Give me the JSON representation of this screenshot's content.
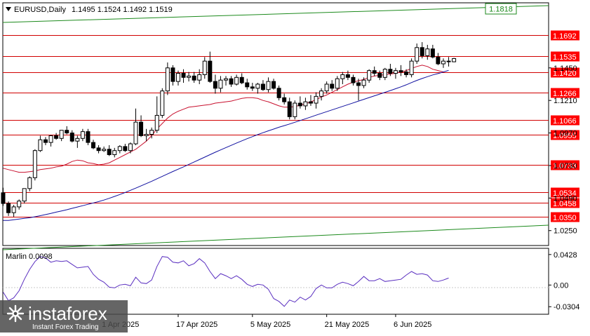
{
  "chart_data": [
    {
      "type": "candlestick",
      "header": {
        "symbol_tf": "EURUSD,Daily",
        "ohlc": "1.1495 1.1524 1.1492 1.1519"
      },
      "y_ticks": [
        "1.1450",
        "1.1210",
        "1.0970",
        "1.0730",
        "1.0490",
        "1.0250"
      ],
      "levels": [
        {
          "value": 1.1692,
          "label": "1.1692"
        },
        {
          "value": 1.1535,
          "label": "1.1535"
        },
        {
          "value": 1.142,
          "label": "1.1420"
        },
        {
          "value": 1.1266,
          "label": "1.1266"
        },
        {
          "value": 1.1066,
          "label": "1.1066"
        },
        {
          "value": 1.0955,
          "label": "1.0955"
        },
        {
          "value": 1.0733,
          "label": "1.0733"
        },
        {
          "value": 1.0534,
          "label": "1.0534"
        },
        {
          "value": 1.0458,
          "label": "1.0458"
        },
        {
          "value": 1.035,
          "label": "1.0350"
        }
      ],
      "channel_label": "1.1818",
      "ylim": [
        1.014,
        1.193
      ],
      "x_labels": [
        "1 Apr 2025",
        "17 Apr 2025",
        "5 May 2025",
        "21 May 2025",
        "6 Jun 2025"
      ],
      "x_label_bar_index": [
        19,
        33,
        47,
        61,
        74
      ],
      "candles": [
        [
          1.0529,
          1.0566,
          1.0432,
          1.045
        ],
        [
          1.045,
          1.0465,
          1.0358,
          1.0382
        ],
        [
          1.0382,
          1.044,
          1.0351,
          1.0425
        ],
        [
          1.0425,
          1.048,
          1.0405,
          1.0468
        ],
        [
          1.0468,
          1.056,
          1.045,
          1.056
        ],
        [
          1.056,
          1.065,
          1.054,
          1.064
        ],
        [
          1.064,
          1.085,
          1.062,
          1.084
        ],
        [
          1.084,
          1.095,
          1.083,
          1.092
        ],
        [
          1.092,
          1.094,
          1.088,
          1.09
        ],
        [
          1.09,
          1.0955,
          1.087,
          1.095
        ],
        [
          1.095,
          1.097,
          1.092,
          1.093
        ],
        [
          1.093,
          1.099,
          1.091,
          1.099
        ],
        [
          1.099,
          1.102,
          1.096,
          1.097
        ],
        [
          1.097,
          1.099,
          1.09,
          1.091
        ],
        [
          1.091,
          1.095,
          1.086,
          1.093
        ],
        [
          1.093,
          1.1,
          1.091,
          1.098
        ],
        [
          1.098,
          1.1,
          1.088,
          1.09
        ],
        [
          1.09,
          1.092,
          1.085,
          1.086
        ],
        [
          1.086,
          1.088,
          1.082,
          1.084
        ],
        [
          1.084,
          1.087,
          1.083,
          1.085
        ],
        [
          1.085,
          1.088,
          1.08,
          1.081
        ],
        [
          1.081,
          1.086,
          1.079,
          1.084
        ],
        [
          1.084,
          1.088,
          1.082,
          1.087
        ],
        [
          1.087,
          1.089,
          1.083,
          1.084
        ],
        [
          1.084,
          1.09,
          1.082,
          1.089
        ],
        [
          1.089,
          1.115,
          1.088,
          1.105
        ],
        [
          1.105,
          1.11,
          1.094,
          1.095
        ],
        [
          1.095,
          1.1,
          1.091,
          1.096
        ],
        [
          1.096,
          1.101,
          1.093,
          1.099
        ],
        [
          1.099,
          1.124,
          1.097,
          1.11
        ],
        [
          1.11,
          1.13,
          1.108,
          1.128
        ],
        [
          1.128,
          1.149,
          1.125,
          1.145
        ],
        [
          1.145,
          1.147,
          1.132,
          1.135
        ],
        [
          1.135,
          1.143,
          1.132,
          1.141
        ],
        [
          1.141,
          1.144,
          1.134,
          1.138
        ],
        [
          1.138,
          1.142,
          1.135,
          1.139
        ],
        [
          1.139,
          1.142,
          1.134,
          1.136
        ],
        [
          1.136,
          1.144,
          1.133,
          1.14
        ],
        [
          1.14,
          1.153,
          1.137,
          1.15
        ],
        [
          1.15,
          1.157,
          1.134,
          1.135
        ],
        [
          1.135,
          1.14,
          1.126,
          1.13
        ],
        [
          1.13,
          1.139,
          1.127,
          1.136
        ],
        [
          1.136,
          1.139,
          1.132,
          1.137
        ],
        [
          1.137,
          1.139,
          1.131,
          1.133
        ],
        [
          1.133,
          1.14,
          1.132,
          1.138
        ],
        [
          1.138,
          1.141,
          1.133,
          1.134
        ],
        [
          1.134,
          1.137,
          1.129,
          1.131
        ],
        [
          1.131,
          1.134,
          1.128,
          1.13
        ],
        [
          1.13,
          1.134,
          1.126,
          1.133
        ],
        [
          1.133,
          1.136,
          1.128,
          1.129
        ],
        [
          1.129,
          1.138,
          1.127,
          1.135
        ],
        [
          1.135,
          1.137,
          1.129,
          1.13
        ],
        [
          1.13,
          1.132,
          1.121,
          1.123
        ],
        [
          1.123,
          1.126,
          1.118,
          1.12
        ],
        [
          1.12,
          1.123,
          1.107,
          1.109
        ],
        [
          1.109,
          1.121,
          1.107,
          1.119
        ],
        [
          1.119,
          1.124,
          1.115,
          1.117
        ],
        [
          1.117,
          1.123,
          1.114,
          1.12
        ],
        [
          1.12,
          1.125,
          1.117,
          1.119
        ],
        [
          1.119,
          1.127,
          1.115,
          1.124
        ],
        [
          1.124,
          1.13,
          1.121,
          1.128
        ],
        [
          1.128,
          1.135,
          1.126,
          1.133
        ],
        [
          1.133,
          1.136,
          1.128,
          1.13
        ],
        [
          1.13,
          1.139,
          1.128,
          1.137
        ],
        [
          1.137,
          1.142,
          1.133,
          1.14
        ],
        [
          1.14,
          1.143,
          1.136,
          1.138
        ],
        [
          1.138,
          1.14,
          1.132,
          1.134
        ],
        [
          1.134,
          1.137,
          1.121,
          1.132
        ],
        [
          1.132,
          1.138,
          1.13,
          1.136
        ],
        [
          1.136,
          1.144,
          1.134,
          1.143
        ],
        [
          1.143,
          1.146,
          1.139,
          1.141
        ],
        [
          1.141,
          1.143,
          1.136,
          1.138
        ],
        [
          1.138,
          1.145,
          1.136,
          1.144
        ],
        [
          1.144,
          1.148,
          1.139,
          1.141
        ],
        [
          1.141,
          1.145,
          1.137,
          1.143
        ],
        [
          1.143,
          1.147,
          1.139,
          1.142
        ],
        [
          1.142,
          1.144,
          1.138,
          1.14
        ],
        [
          1.14,
          1.152,
          1.138,
          1.15
        ],
        [
          1.15,
          1.163,
          1.148,
          1.16
        ],
        [
          1.16,
          1.164,
          1.152,
          1.154
        ],
        [
          1.154,
          1.162,
          1.151,
          1.159
        ],
        [
          1.159,
          1.162,
          1.152,
          1.153
        ],
        [
          1.153,
          1.156,
          1.147,
          1.148
        ],
        [
          1.148,
          1.152,
          1.145,
          1.15
        ],
        [
          1.15,
          1.153,
          1.146,
          1.1495
        ],
        [
          1.1495,
          1.1524,
          1.1492,
          1.1519
        ]
      ],
      "ma_red": [
        1.071,
        1.07,
        1.069,
        1.068,
        1.068,
        1.0685,
        1.069,
        1.07,
        1.0705,
        1.071,
        1.072,
        1.0725,
        1.074,
        1.076,
        1.077,
        1.0765,
        1.075,
        1.0745,
        1.0735,
        1.074,
        1.075,
        1.077,
        1.079,
        1.081,
        1.083,
        1.085,
        1.088,
        1.091,
        1.095,
        1.1,
        1.104,
        1.108,
        1.111,
        1.113,
        1.1145,
        1.116,
        1.1165,
        1.117,
        1.1175,
        1.118,
        1.119,
        1.1195,
        1.12,
        1.1205,
        1.1215,
        1.1225,
        1.123,
        1.123,
        1.1225,
        1.121,
        1.12,
        1.1185,
        1.117,
        1.116,
        1.116,
        1.1165,
        1.1175,
        1.1185,
        1.12,
        1.1215,
        1.1235,
        1.125,
        1.127,
        1.129,
        1.131,
        1.133,
        1.1345,
        1.1355,
        1.1365,
        1.138,
        1.139,
        1.1395,
        1.14,
        1.1405,
        1.141,
        1.142,
        1.143,
        1.1445,
        1.146,
        1.147,
        1.146,
        1.144,
        1.143,
        1.142
      ],
      "ma_blue": [
        1.0325,
        1.0325,
        1.033,
        1.0335,
        1.034,
        1.0345,
        1.0352,
        1.036,
        1.0368,
        1.0377,
        1.0386,
        1.0395,
        1.0404,
        1.0414,
        1.0424,
        1.0434,
        1.0444,
        1.0454,
        1.0464,
        1.0475,
        1.0488,
        1.0502,
        1.0516,
        1.0531,
        1.0547,
        1.0563,
        1.058,
        1.0597,
        1.0614,
        1.0632,
        1.065,
        1.0668,
        1.0686,
        1.0703,
        1.072,
        1.0738,
        1.0756,
        1.0774,
        1.0792,
        1.081,
        1.0828,
        1.0845,
        1.0862,
        1.0879,
        1.0896,
        1.0912,
        1.0928,
        1.0943,
        1.0958,
        1.0972,
        1.0986,
        1.0999,
        1.1012,
        1.1024,
        1.1036,
        1.1049,
        1.1062,
        1.1075,
        1.1088,
        1.1101,
        1.1114,
        1.1127,
        1.114,
        1.1153,
        1.1166,
        1.1179,
        1.1192,
        1.1205,
        1.1218,
        1.1231,
        1.1244,
        1.1257,
        1.127,
        1.1283,
        1.1296,
        1.131,
        1.1325,
        1.1342,
        1.1358,
        1.1372,
        1.1385,
        1.1398,
        1.1408,
        1.142,
        1.1432
      ]
    },
    {
      "type": "line",
      "label": "Marlin 0.0098",
      "y_ticks": [
        "0.0428",
        "0.00",
        "-0.0304"
      ],
      "ylim": [
        -0.041,
        0.0515
      ],
      "values": [
        -0.01,
        -0.022,
        -0.018,
        -0.008,
        0.008,
        0.022,
        0.033,
        0.04,
        0.038,
        0.032,
        0.034,
        0.033,
        0.034,
        0.029,
        0.024,
        0.025,
        0.026,
        0.015,
        0.008,
        0.004,
        -0.003,
        -0.004,
        0.0,
        0.001,
        -0.001,
        0.011,
        0.003,
        0.002,
        0.007,
        0.026,
        0.04,
        0.039,
        0.032,
        0.031,
        0.034,
        0.027,
        0.03,
        0.037,
        0.031,
        0.019,
        0.009,
        0.016,
        0.013,
        0.009,
        0.013,
        0.008,
        0.001,
        -0.002,
        0.001,
        0.0,
        -0.006,
        -0.019,
        -0.023,
        -0.03,
        -0.021,
        -0.024,
        -0.017,
        -0.021,
        -0.016,
        -0.005,
        0.0,
        -0.004,
        -0.004,
        0.001,
        0.004,
        0.002,
        -0.001,
        0.005,
        0.012,
        0.006,
        0.006,
        0.009,
        0.005,
        0.006,
        0.007,
        0.008,
        0.014,
        0.019,
        0.015,
        0.016,
        0.014,
        0.006,
        0.005,
        0.007,
        0.0098
      ]
    }
  ],
  "logo": {
    "brand": "instaforex",
    "tagline": "Instant Forex Trading"
  }
}
